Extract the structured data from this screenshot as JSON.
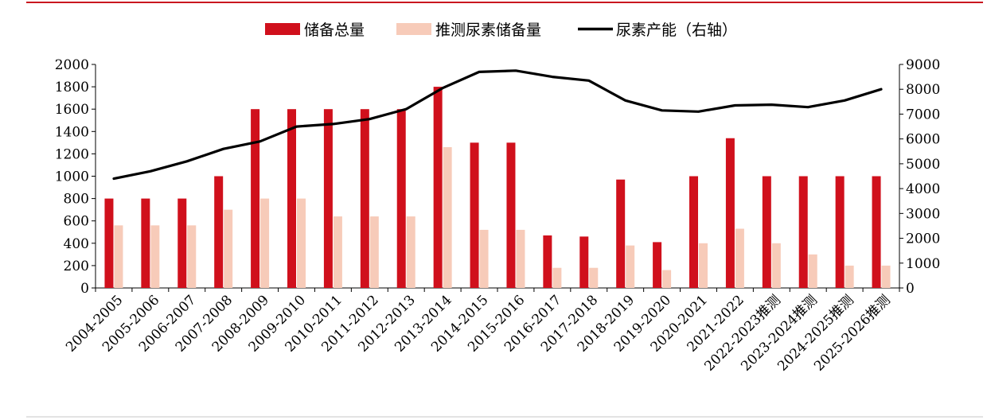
{
  "chart_data": {
    "type": "bar",
    "categories": [
      "2004-2005",
      "2005-2006",
      "2006-2007",
      "2007-2008",
      "2008-2009",
      "2009-2010",
      "2010-2011",
      "2011-2012",
      "2012-2013",
      "2013-2014",
      "2014-2015",
      "2015-2016",
      "2016-2017",
      "2017-2018",
      "2018-2019",
      "2019-2020",
      "2020-2021",
      "2021-2022",
      "2022-2023推测",
      "2023-2024推测",
      "2024-2025推测",
      "2025-2026推测"
    ],
    "series": [
      {
        "name": "储备总量",
        "type": "bar",
        "axis": "left",
        "color": "#d0101c",
        "values": [
          800,
          800,
          800,
          1000,
          1600,
          1600,
          1600,
          1600,
          1600,
          1800,
          1300,
          1300,
          470,
          460,
          970,
          410,
          1000,
          1340,
          1000,
          1000,
          1000,
          1000
        ]
      },
      {
        "name": "推测尿素储备量",
        "type": "bar",
        "axis": "left",
        "color": "#f7cbb9",
        "values": [
          560,
          560,
          560,
          700,
          800,
          800,
          640,
          640,
          640,
          1260,
          520,
          520,
          180,
          180,
          380,
          160,
          400,
          530,
          400,
          300,
          200,
          200
        ]
      },
      {
        "name": "尿素产能（右轴）",
        "type": "line",
        "axis": "right",
        "color": "#000000",
        "values": [
          4400,
          4700,
          5100,
          5600,
          5900,
          6500,
          6600,
          6800,
          7200,
          8050,
          8700,
          8750,
          8500,
          8350,
          7550,
          7150,
          7100,
          7350,
          7380,
          7280,
          7550,
          8000
        ]
      }
    ],
    "yleft": {
      "min": 0,
      "max": 2000,
      "step": 200,
      "ticks": [
        "0",
        "200",
        "400",
        "600",
        "800",
        "1000",
        "1200",
        "1400",
        "1600",
        "1800",
        "2000"
      ]
    },
    "yright": {
      "min": 0,
      "max": 9000,
      "step": 1000,
      "ticks": [
        "0",
        "1000",
        "2000",
        "3000",
        "4000",
        "5000",
        "6000",
        "7000",
        "8000",
        "9000"
      ]
    },
    "legend_position": "top-center",
    "grid": false
  }
}
